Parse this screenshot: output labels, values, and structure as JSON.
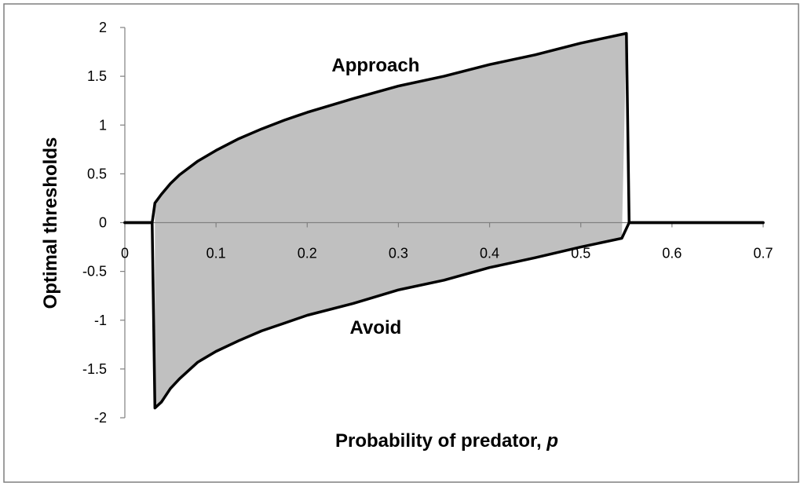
{
  "chart_data": {
    "type": "area",
    "title": "",
    "xlabel": "Probability of predator,",
    "xlabel_var": "p",
    "ylabel": "Optimal thresholds",
    "xlim": [
      0,
      0.7
    ],
    "ylim": [
      -2,
      2
    ],
    "x_ticks": [
      "0",
      "0.1",
      "0.2",
      "0.3",
      "0.4",
      "0.5",
      "0.6",
      "0.7"
    ],
    "y_ticks": [
      "2",
      "1.5",
      "1",
      "0.5",
      "0",
      "-0.5",
      "-1",
      "-1.5",
      "-2"
    ],
    "grid": false,
    "legend": "none",
    "fill_color": "#c0c0c0",
    "line_color": "#000000",
    "annotations": [
      {
        "text": "Approach",
        "x": 0.275,
        "y": 1.55
      },
      {
        "text": "Avoid",
        "x": 0.275,
        "y": -1.14
      }
    ],
    "series": [
      {
        "name": "Approach",
        "points": [
          [
            0,
            0
          ],
          [
            0.03,
            0
          ],
          [
            0.033,
            0.2
          ],
          [
            0.04,
            0.29
          ],
          [
            0.05,
            0.4
          ],
          [
            0.06,
            0.49
          ],
          [
            0.08,
            0.63
          ],
          [
            0.1,
            0.74
          ],
          [
            0.125,
            0.86
          ],
          [
            0.15,
            0.96
          ],
          [
            0.175,
            1.05
          ],
          [
            0.2,
            1.13
          ],
          [
            0.25,
            1.27
          ],
          [
            0.3,
            1.4
          ],
          [
            0.35,
            1.5
          ],
          [
            0.4,
            1.62
          ],
          [
            0.45,
            1.72
          ],
          [
            0.5,
            1.84
          ],
          [
            0.55,
            1.94
          ],
          [
            0.553,
            0
          ],
          [
            0.7,
            0
          ]
        ]
      },
      {
        "name": "Avoid",
        "points": [
          [
            0,
            0
          ],
          [
            0.03,
            0
          ],
          [
            0.033,
            -1.9
          ],
          [
            0.04,
            -1.84
          ],
          [
            0.05,
            -1.7
          ],
          [
            0.06,
            -1.6
          ],
          [
            0.08,
            -1.43
          ],
          [
            0.1,
            -1.32
          ],
          [
            0.125,
            -1.21
          ],
          [
            0.15,
            -1.11
          ],
          [
            0.175,
            -1.03
          ],
          [
            0.2,
            -0.95
          ],
          [
            0.25,
            -0.83
          ],
          [
            0.3,
            -0.69
          ],
          [
            0.35,
            -0.59
          ],
          [
            0.4,
            -0.46
          ],
          [
            0.45,
            -0.36
          ],
          [
            0.5,
            -0.25
          ],
          [
            0.545,
            -0.16
          ],
          [
            0.553,
            0
          ],
          [
            0.7,
            0
          ]
        ]
      }
    ]
  }
}
